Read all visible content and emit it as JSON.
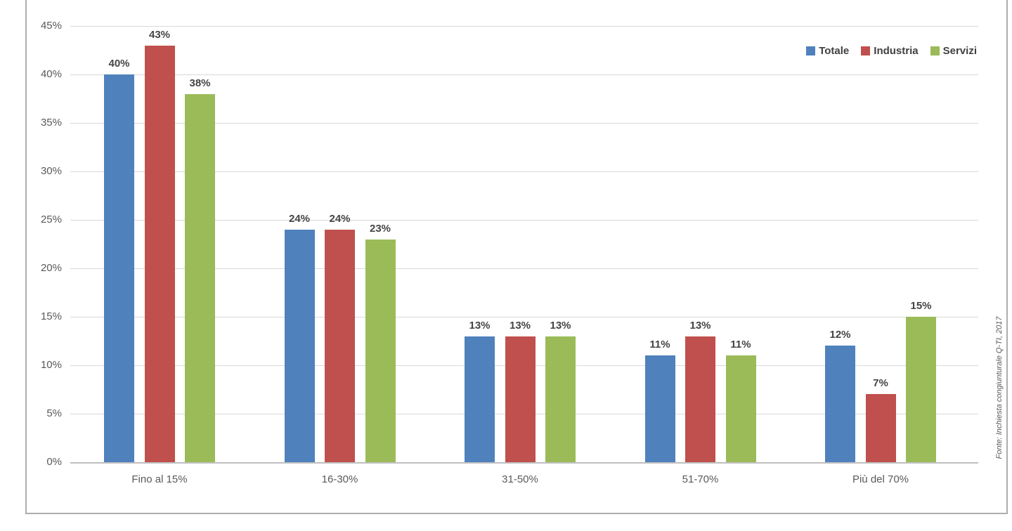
{
  "chart_data": {
    "type": "bar",
    "title": "",
    "categories": [
      "Fino al 15%",
      "16-30%",
      "31-50%",
      "51-70%",
      "Più del 70%"
    ],
    "series": [
      {
        "name": "Totale",
        "color": "#4f81bd",
        "values": [
          40,
          24,
          13,
          11,
          12
        ]
      },
      {
        "name": "Industria",
        "color": "#c0504d",
        "values": [
          43,
          24,
          13,
          13,
          7
        ]
      },
      {
        "name": "Servizi",
        "color": "#9bbb59",
        "values": [
          38,
          23,
          13,
          11,
          15
        ]
      }
    ],
    "value_suffix": "%",
    "y_ticks": [
      "0%",
      "5%",
      "10%",
      "15%",
      "20%",
      "25%",
      "30%",
      "35%",
      "40%",
      "45%"
    ],
    "ylim": [
      0,
      45
    ],
    "y_step": 5,
    "grid": true,
    "legend_position": "top-right",
    "xlabel": "",
    "ylabel": ""
  },
  "source_note": "Fonte: Inchiesta congiunturale Q-TI, 2017"
}
